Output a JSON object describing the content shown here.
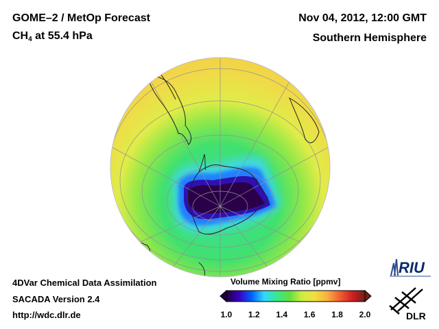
{
  "header": {
    "title_line1": "GOME–2 / MetOp Forecast",
    "species": "CH",
    "species_sub": "4",
    "level": " at 55.4 hPa",
    "date": "Nov 04, 2012, 12:00 GMT",
    "region": "Southern Hemisphere"
  },
  "footer": {
    "line1": "4DVar Chemical Data Assimilation",
    "line2": "SACADA Version 2.4",
    "line3": "http://wdc.dlr.de"
  },
  "colorbar": {
    "title": "Volume Mixing Ratio [ppmv]",
    "ticks": [
      "1.0",
      "1.2",
      "1.4",
      "1.6",
      "1.8",
      "2.0"
    ],
    "range": [
      1.0,
      2.0
    ],
    "colors": [
      "#200040",
      "#3a00c0",
      "#0060ff",
      "#30d8ff",
      "#38e890",
      "#60e040",
      "#d0ec40",
      "#f0e040",
      "#f8b040",
      "#f06030",
      "#d02020",
      "#702018"
    ]
  },
  "map": {
    "projection": "orthographic",
    "center": "south-pole",
    "ocean_base_value": 1.58,
    "polar_vortex_min_value": 1.0,
    "background_color": "#f0d040"
  },
  "logos": {
    "riu": "RIU",
    "dlr": "DLR"
  }
}
